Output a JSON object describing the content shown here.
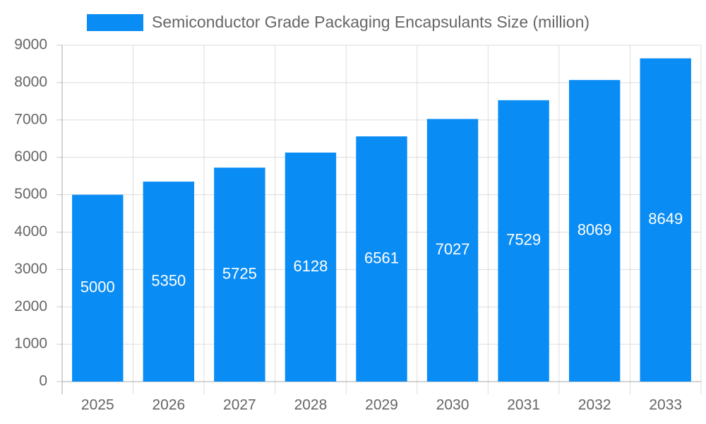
{
  "chart_data": {
    "type": "bar",
    "categories": [
      "2025",
      "2026",
      "2027",
      "2028",
      "2029",
      "2030",
      "2031",
      "2032",
      "2033"
    ],
    "series": [
      {
        "name": "Semiconductor Grade Packaging Encapsulants Size (million)",
        "color": "#0a8cf5",
        "values": [
          5000,
          5350,
          5725,
          6128,
          6561,
          7027,
          7529,
          8069,
          8649
        ]
      }
    ],
    "ylim": [
      0,
      9000
    ],
    "yticks": [
      0,
      1000,
      2000,
      3000,
      4000,
      5000,
      6000,
      7000,
      8000,
      9000
    ],
    "grid": true,
    "legend": "top"
  }
}
